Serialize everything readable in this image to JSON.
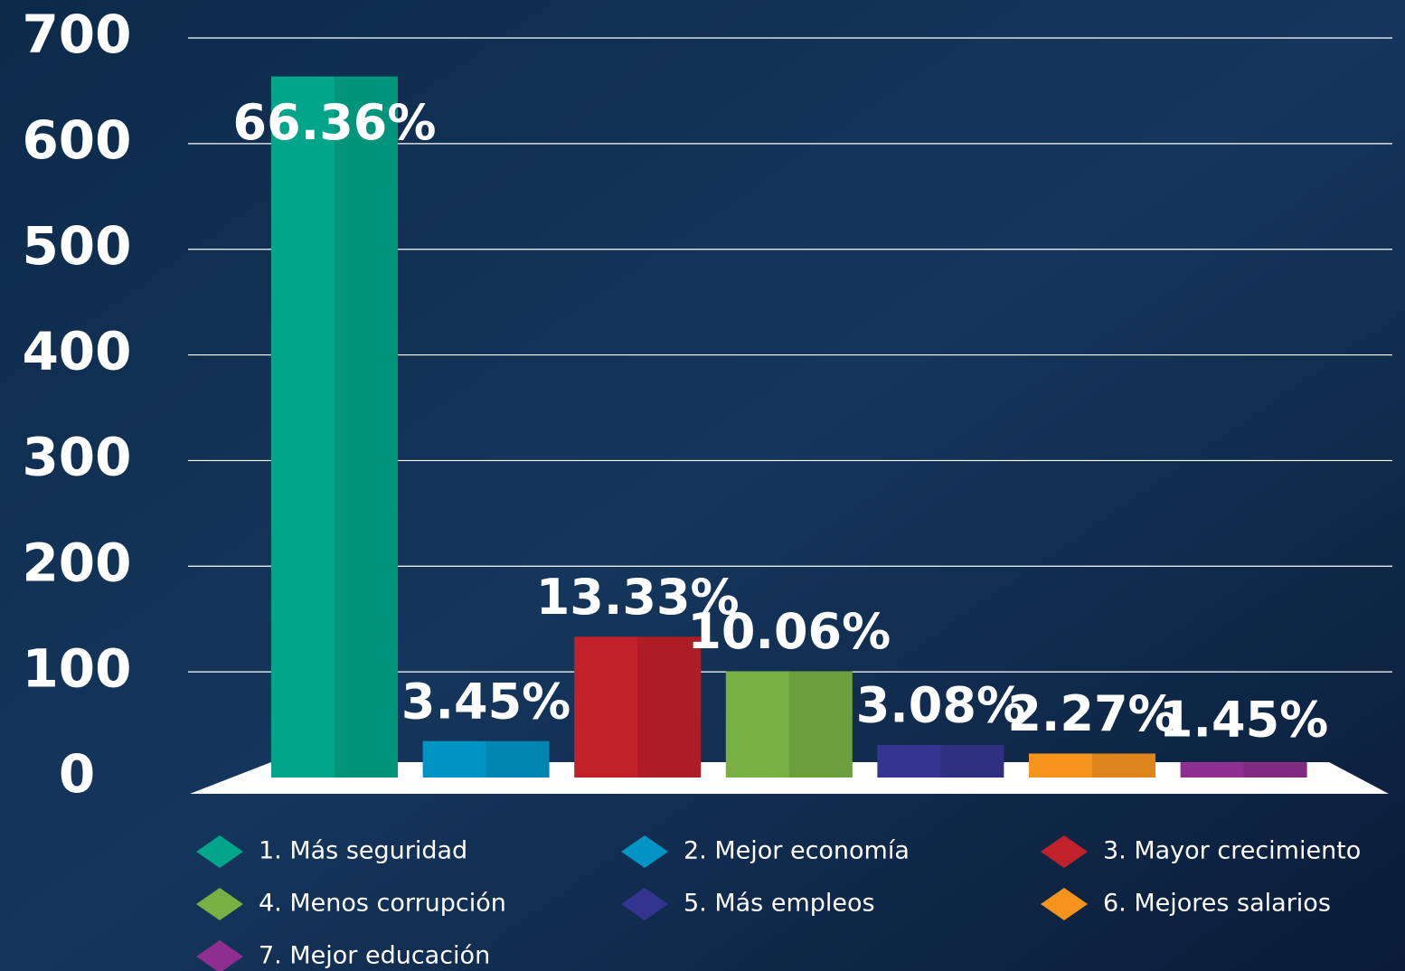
{
  "chart_data": {
    "type": "bar",
    "categories": [
      "1. Más seguridad",
      "2. Mejor economía",
      "3. Mayor crecimiento",
      "4. Menos corrupción",
      "5. Más empleos",
      "6. Mejores salarios",
      "7. Mejor educación"
    ],
    "values": [
      663.6,
      34.5,
      133.3,
      100.6,
      30.8,
      22.7,
      14.5
    ],
    "value_labels": [
      "66.36%",
      "3.45%",
      "13.33%",
      "10.06%",
      "3.08%",
      "2.27%",
      "1.45%"
    ],
    "colors": [
      "#00a58a",
      "#0094c4",
      "#c0212b",
      "#78b043",
      "#34358f",
      "#f7941d",
      "#8e2f8f"
    ],
    "ylim": [
      0,
      700
    ],
    "yticks": [
      0,
      100,
      200,
      300,
      400,
      500,
      600,
      700
    ],
    "grid": true
  }
}
